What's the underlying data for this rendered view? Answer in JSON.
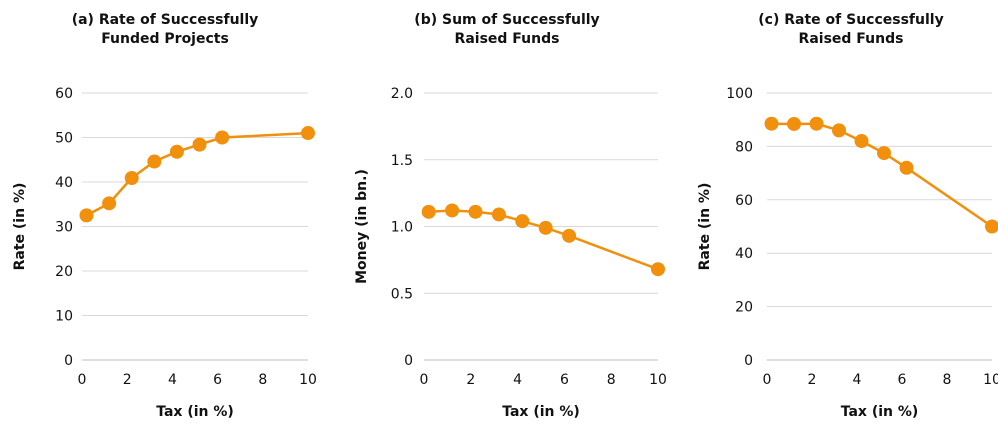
{
  "colors": {
    "series": "#f0900d",
    "grid": "#d9d9d9",
    "text": "#111111"
  },
  "chart_data": [
    {
      "type": "line",
      "title": "(a) Rate of Successfully Funded Projects",
      "title_lines": [
        "(a) Rate of Successfully",
        "Funded Projects"
      ],
      "xlabel": "Tax (in %)",
      "ylabel": "Rate (in %)",
      "xlim": [
        0,
        10
      ],
      "ylim": [
        0,
        60
      ],
      "xticks": [
        0,
        2,
        4,
        6,
        8,
        10
      ],
      "yticks": [
        0,
        10,
        20,
        30,
        40,
        50,
        60
      ],
      "ytick_labels": [
        "0",
        "10",
        "20",
        "30",
        "40",
        "50",
        "60"
      ],
      "grid": true,
      "series": [
        {
          "x": [
            0.2,
            1.2,
            2.2,
            3.2,
            4.2,
            5.2,
            6.2,
            10
          ],
          "y": [
            32.5,
            35.2,
            40.9,
            44.6,
            46.8,
            48.4,
            50.0,
            51.0
          ]
        }
      ]
    },
    {
      "type": "line",
      "title": "(b) Sum of Successfully Raised Funds",
      "title_lines": [
        "(b) Sum of Successfully",
        "Raised Funds"
      ],
      "xlabel": "Tax (in %)",
      "ylabel": "Money (in bn.)",
      "xlim": [
        0,
        10
      ],
      "ylim": [
        0,
        2.0
      ],
      "xticks": [
        0,
        2,
        4,
        6,
        8,
        10
      ],
      "yticks": [
        0,
        0.5,
        1.0,
        1.5,
        2.0
      ],
      "ytick_labels": [
        "0",
        "0.5",
        "1.0",
        "1.5",
        "2.0"
      ],
      "grid": true,
      "series": [
        {
          "x": [
            0.2,
            1.2,
            2.2,
            3.2,
            4.2,
            5.2,
            6.2,
            10
          ],
          "y": [
            1.11,
            1.12,
            1.11,
            1.09,
            1.04,
            0.99,
            0.93,
            0.68
          ]
        }
      ]
    },
    {
      "type": "line",
      "title": "(c) Rate of Successfully Raised Funds",
      "title_lines": [
        "(c) Rate of Successfully",
        "Raised Funds"
      ],
      "xlabel": "Tax (in %)",
      "ylabel": "Rate (in %)",
      "xlim": [
        0,
        10
      ],
      "ylim": [
        0,
        100
      ],
      "xticks": [
        0,
        2,
        4,
        6,
        8,
        10
      ],
      "yticks": [
        0,
        20,
        40,
        60,
        80,
        100
      ],
      "ytick_labels": [
        "0",
        "20",
        "40",
        "60",
        "80",
        "100"
      ],
      "grid": true,
      "series": [
        {
          "x": [
            0.2,
            1.2,
            2.2,
            3.2,
            4.2,
            5.2,
            6.2,
            10
          ],
          "y": [
            88.5,
            88.4,
            88.5,
            86.0,
            82.0,
            77.5,
            72.0,
            50.0
          ]
        }
      ]
    }
  ]
}
